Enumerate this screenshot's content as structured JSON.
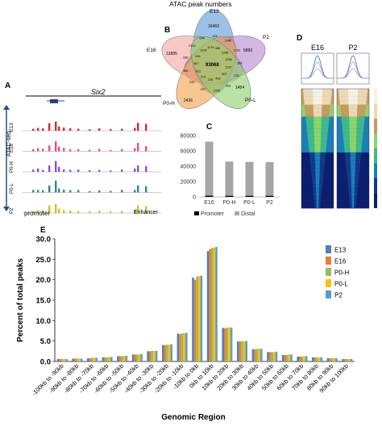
{
  "panel_labels": {
    "a": "A",
    "b": "B",
    "c": "C",
    "d": "D",
    "e": "E"
  },
  "panel_a": {
    "gene": "Six2",
    "side_label": "ATAC-seq",
    "tracks": [
      "E13",
      "E16",
      "P0-H",
      "P0-L",
      "P2"
    ],
    "track_colors": [
      "#d6282a",
      "#e84c8b",
      "#8a4fc9",
      "#2a8a8a",
      "#c8c61a"
    ],
    "bottom_left": "promoter",
    "bottom_right": "Enhancer"
  },
  "panel_b": {
    "title": "ATAC peak numbers",
    "sets": [
      {
        "name": "E13",
        "color": "#5f9bd8"
      },
      {
        "name": "E16",
        "color": "#f3a7a3"
      },
      {
        "name": "P2",
        "color": "#b58bd1"
      },
      {
        "name": "P0-H",
        "color": "#f2a14e"
      },
      {
        "name": "P0-L",
        "color": "#8ed06c"
      }
    ],
    "unique_counts": {
      "E13": "16463",
      "E16": "12885",
      "P2": "5890",
      "P0-H": "2436",
      "P0-L": "1454"
    },
    "center_count": "93068",
    "region_counts": [
      "425",
      "1085",
      "1153",
      "384",
      "232",
      "563",
      "1005",
      "207",
      "244",
      "356",
      "338",
      "2315",
      "294",
      "458",
      "1248",
      "1285",
      "1197",
      "303",
      "452",
      "225",
      "374",
      "313",
      "387",
      "246",
      "1109",
      "1174"
    ]
  },
  "chart_data": [
    {
      "type": "bar",
      "panel": "C",
      "categories": [
        "E16",
        "P0-H",
        "P0-L",
        "P2"
      ],
      "series": [
        {
          "name": "Promoter",
          "color": "#000000",
          "values": [
            1500,
            1400,
            1400,
            1400
          ]
        },
        {
          "name": "Distal",
          "color": "#a6a6a6",
          "values": [
            70500,
            44600,
            44200,
            44000
          ]
        }
      ],
      "yticks": [
        0,
        20000,
        40000,
        60000,
        80000
      ],
      "ylim": [
        0,
        80000
      ],
      "legend": [
        "Promoter",
        "Distal"
      ]
    },
    {
      "type": "bar",
      "panel": "E",
      "ylabel": "Percent of total peaks",
      "xlabel": "Genomic Region",
      "ylim": [
        0,
        30
      ],
      "yticks": [
        "0.0",
        "5.0",
        "10.0",
        "15.0",
        "20.0",
        "25.0",
        "30.0"
      ],
      "categories": [
        "-100kb to -90kb",
        "-90kb to -80kb",
        "-80kb to -70kb",
        "-70kb to -60kb",
        "-60kb to -50kb",
        "-50kb to -40kb",
        "-40kb to -30kb",
        "-30kb to -20kb",
        "-20kb to -10kb",
        "-10kb to 0kb",
        "0kb to 10kb",
        "10kb to 20kb",
        "20kb to 30kb",
        "30kb to 40kb",
        "40kb to 50kb",
        "50kb to 60kb",
        "60kb to 70kb",
        "70kb to 80kb",
        "80kb to 90kb",
        "90kb to 100kb"
      ],
      "series": [
        {
          "name": "E13",
          "color": "#4f81bd",
          "values": [
            0.6,
            0.7,
            0.8,
            1.0,
            1.3,
            1.7,
            2.5,
            4.0,
            6.8,
            20.5,
            27.0,
            8.2,
            4.9,
            3.0,
            2.3,
            1.6,
            1.2,
            1.0,
            0.8,
            0.6
          ]
        },
        {
          "name": "E16",
          "color": "#ed7d31",
          "values": [
            0.6,
            0.7,
            0.8,
            1.0,
            1.3,
            1.7,
            2.5,
            4.0,
            6.7,
            20.0,
            27.5,
            8.1,
            4.9,
            3.0,
            2.3,
            1.6,
            1.2,
            1.0,
            0.8,
            0.6
          ]
        },
        {
          "name": "P0-H",
          "color": "#9bbb59",
          "values": [
            0.6,
            0.7,
            0.9,
            1.0,
            1.3,
            1.7,
            2.6,
            4.1,
            6.9,
            20.8,
            27.8,
            8.3,
            5.0,
            3.1,
            2.3,
            1.6,
            1.2,
            1.0,
            0.8,
            0.6
          ]
        },
        {
          "name": "P0-L",
          "color": "#ffc000",
          "values": [
            0.6,
            0.7,
            0.9,
            1.1,
            1.4,
            1.8,
            2.6,
            4.1,
            6.9,
            20.9,
            27.8,
            8.3,
            5.0,
            3.1,
            2.3,
            1.7,
            1.3,
            1.0,
            0.8,
            0.6
          ]
        },
        {
          "name": "P2",
          "color": "#5b9bd5",
          "values": [
            0.6,
            0.7,
            0.9,
            1.1,
            1.4,
            1.8,
            2.6,
            4.2,
            7.0,
            21.0,
            28.0,
            8.3,
            5.0,
            3.1,
            2.4,
            1.7,
            1.3,
            1.0,
            0.8,
            0.6
          ]
        }
      ]
    }
  ],
  "panel_d": {
    "columns": [
      "E16",
      "P2"
    ],
    "profile_color": "#3a4ea8",
    "heat_colors": [
      "#f4f2e4",
      "#ead8b8",
      "#c79a62",
      "#8bd468",
      "#3fb88a",
      "#1a7fb8",
      "#123a8c",
      "#0b1f6e"
    ]
  }
}
